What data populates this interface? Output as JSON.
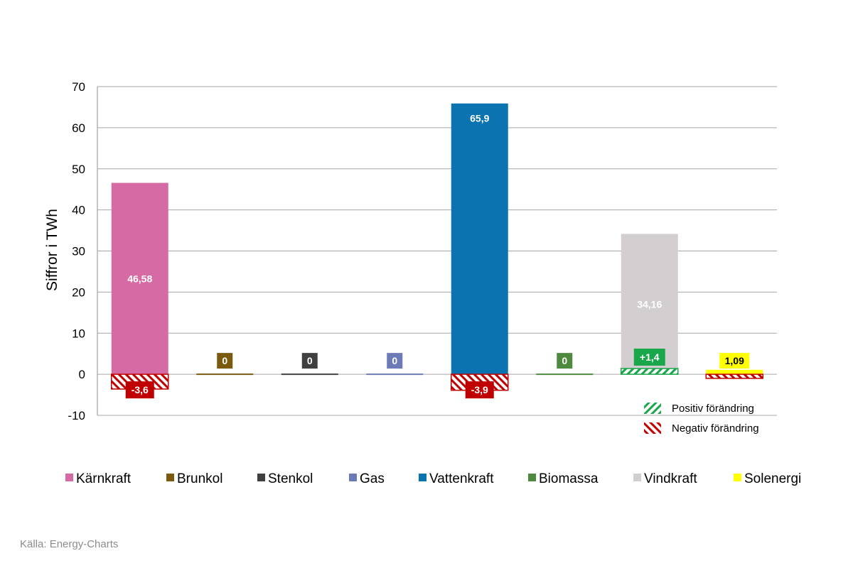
{
  "chart_data": {
    "type": "bar",
    "title": "",
    "xlabel": "",
    "ylabel": "Siffror i TWh",
    "ylim": [
      -10,
      70
    ],
    "yticks": [
      -10,
      0,
      10,
      20,
      30,
      40,
      50,
      60,
      70
    ],
    "grid": true,
    "categories": [
      "Kärnkraft",
      "Brunkol",
      "Stenkol",
      "Gas",
      "Vattenkraft",
      "Biomassa",
      "Vindkraft",
      "Solenergi"
    ],
    "colors": [
      "#d66aa4",
      "#7a5a0f",
      "#404040",
      "#6c7bb8",
      "#0b74b0",
      "#4e8a3e",
      "#d3cfd1",
      "#ffff00"
    ],
    "values": [
      46.58,
      0,
      0,
      0,
      65.9,
      0,
      34.16,
      1.09
    ],
    "value_labels": [
      "46,58",
      "0",
      "0",
      "0",
      "65,9",
      "0",
      "34,16",
      "1,09"
    ],
    "changes": [
      -3.6,
      null,
      null,
      null,
      -3.9,
      null,
      1.4,
      -1.0
    ],
    "change_labels": [
      "-3,6",
      "",
      "",
      "",
      "-3,9",
      "",
      "+1,4",
      ""
    ],
    "positive_color": "#1aa64a",
    "negative_color": "#c00000",
    "legend_position": "bottom",
    "change_legend": {
      "position": "lower-right",
      "positive": "Positiv förändring",
      "negative": "Negativ förändring"
    }
  },
  "source": "Källa: Energy-Charts"
}
